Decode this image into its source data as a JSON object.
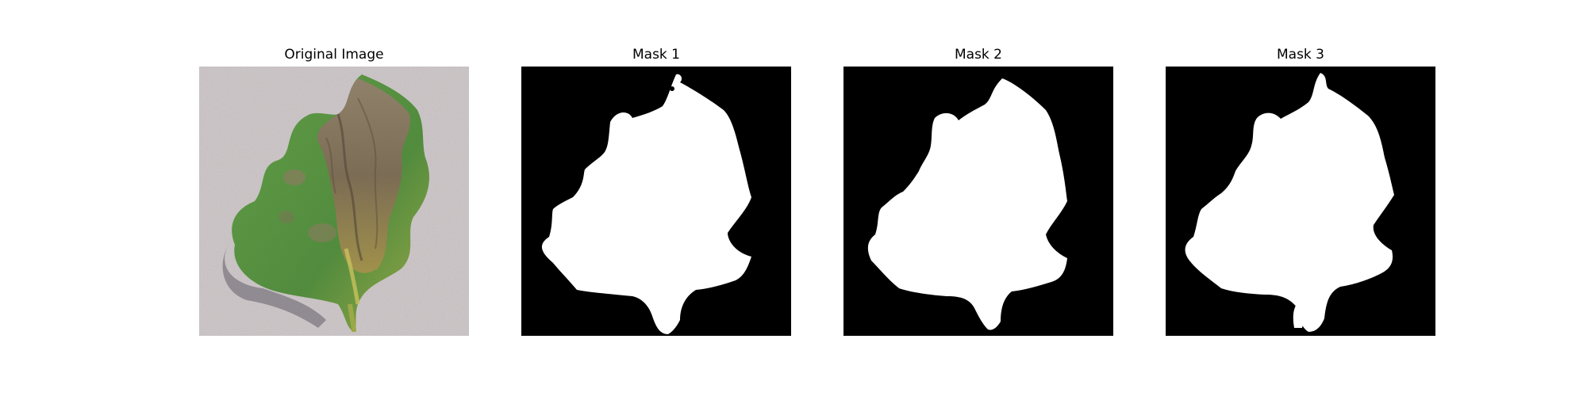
{
  "figure": {
    "panels": [
      {
        "title": "Original Image",
        "kind": "photo"
      },
      {
        "title": "Mask 1",
        "kind": "mask"
      },
      {
        "title": "Mask 2",
        "kind": "mask"
      },
      {
        "title": "Mask 3",
        "kind": "mask"
      }
    ]
  },
  "colors": {
    "background": "#ffffff",
    "mask_background": "#000000",
    "mask_foreground": "#ffffff",
    "photo_background": "#cbc4c6",
    "leaf_green": "#5e9a45",
    "leaf_dark_green": "#3f7a30",
    "leaf_yellow": "#b8b044",
    "necrotic_brown": "#8a7a63",
    "necrotic_dark": "#4e4334",
    "shadow": "#6e6a70"
  }
}
